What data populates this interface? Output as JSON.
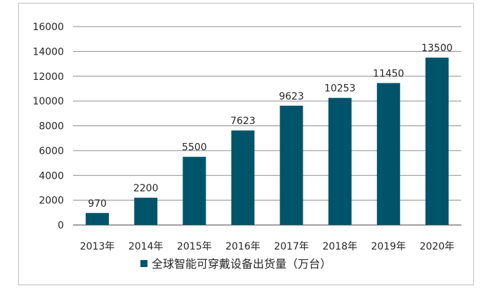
{
  "chart_data": {
    "type": "bar",
    "categories": [
      "2013年",
      "2014年",
      "2015年",
      "2016年",
      "2017年",
      "2018年",
      "2019年",
      "2020年"
    ],
    "series": [
      {
        "name": "全球智能可穿戴设备出货量（万台）",
        "values": [
          970,
          2200,
          5500,
          7623,
          9623,
          10253,
          11450,
          13500
        ],
        "color": "#00546a"
      }
    ],
    "data_labels": [
      "970",
      "2200",
      "5500",
      "7623",
      "9623",
      "10253",
      "11450",
      "13500"
    ],
    "y_ticks": [
      "0",
      "2000",
      "4000",
      "6000",
      "8000",
      "10000",
      "12000",
      "14000",
      "16000"
    ],
    "ylim": [
      0,
      16000
    ],
    "grid": true,
    "legend_position": "bottom",
    "title": "",
    "xlabel": "",
    "ylabel": ""
  },
  "colors": {
    "bar": "#00546a",
    "grid": "#8c8c8c",
    "axis": "#404040",
    "border": "#bfbfbf"
  }
}
